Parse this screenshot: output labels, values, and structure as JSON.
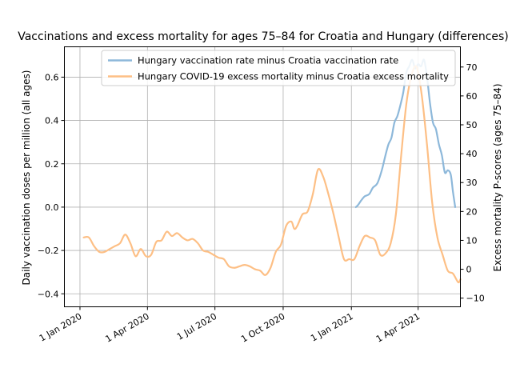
{
  "chart_data": {
    "type": "line",
    "title": "Vaccinations and excess mortality for ages 75–84 for Croatia and Hungary (differences)",
    "xlabel": "",
    "ylabel_left": "Daily vaccination doses per million (all ages)",
    "ylabel_right": "Excess mortality P-scores (ages 75–84)",
    "x_ticks": [
      "1 Jan 2020",
      "1 Apr 2020",
      "1 Jul 2020",
      "1 Oct 2020",
      "1 Jan 2021",
      "1 Apr 2021"
    ],
    "x_tick_dates": [
      "2020-01-01",
      "2020-04-01",
      "2020-07-01",
      "2020-10-01",
      "2021-01-01",
      "2021-04-01"
    ],
    "xlim": [
      "2019-12-11",
      "2021-05-28"
    ],
    "ylim_left": [
      -0.46,
      0.74
    ],
    "ylim_right": [
      -13,
      77
    ],
    "yticks_left": [
      "−0.4",
      "−0.2",
      "0.0",
      "0.2",
      "0.4",
      "0.6"
    ],
    "ytick_values_left": [
      -0.4,
      -0.2,
      0.0,
      0.2,
      0.4,
      0.6
    ],
    "yticks_right": [
      "−10",
      "0",
      "10",
      "20",
      "30",
      "40",
      "50",
      "60",
      "70"
    ],
    "ytick_values_right": [
      -10,
      0,
      10,
      20,
      30,
      40,
      50,
      60,
      70
    ],
    "grid": true,
    "legend_position": "top-right",
    "series": [
      {
        "name": "Hungary vaccination rate minus Croatia vaccination rate",
        "axis": "left",
        "color": "#8db8da",
        "points": [
          [
            "2021-01-07",
            0.0
          ],
          [
            "2021-01-10",
            0.01
          ],
          [
            "2021-01-14",
            0.03
          ],
          [
            "2021-01-19",
            0.05
          ],
          [
            "2021-01-25",
            0.06
          ],
          [
            "2021-01-30",
            0.09
          ],
          [
            "2021-02-05",
            0.11
          ],
          [
            "2021-02-11",
            0.17
          ],
          [
            "2021-02-16",
            0.24
          ],
          [
            "2021-02-20",
            0.29
          ],
          [
            "2021-02-24",
            0.32
          ],
          [
            "2021-02-28",
            0.39
          ],
          [
            "2021-03-04",
            0.42
          ],
          [
            "2021-03-08",
            0.47
          ],
          [
            "2021-03-12",
            0.53
          ],
          [
            "2021-03-16",
            0.62
          ],
          [
            "2021-03-20",
            0.65
          ],
          [
            "2021-03-24",
            0.68
          ],
          [
            "2021-03-28",
            0.64
          ],
          [
            "2021-04-01",
            0.66
          ],
          [
            "2021-04-05",
            0.65
          ],
          [
            "2021-04-09",
            0.68
          ],
          [
            "2021-04-13",
            0.6
          ],
          [
            "2021-04-17",
            0.48
          ],
          [
            "2021-04-21",
            0.39
          ],
          [
            "2021-04-25",
            0.36
          ],
          [
            "2021-04-29",
            0.29
          ],
          [
            "2021-05-03",
            0.24
          ],
          [
            "2021-05-07",
            0.16
          ],
          [
            "2021-05-11",
            0.17
          ],
          [
            "2021-05-15",
            0.15
          ],
          [
            "2021-05-18",
            0.07
          ],
          [
            "2021-05-21",
            0.0
          ]
        ]
      },
      {
        "name": "Hungary COVID-19 excess mortality minus Croatia excess mortality",
        "axis": "right",
        "color": "#fdbf85",
        "points": [
          [
            "2020-01-06",
            11
          ],
          [
            "2020-01-13",
            11
          ],
          [
            "2020-01-20",
            8
          ],
          [
            "2020-01-27",
            6
          ],
          [
            "2020-02-03",
            6
          ],
          [
            "2020-02-10",
            7
          ],
          [
            "2020-02-17",
            8
          ],
          [
            "2020-02-24",
            9
          ],
          [
            "2020-03-02",
            12
          ],
          [
            "2020-03-09",
            9
          ],
          [
            "2020-03-16",
            4.5
          ],
          [
            "2020-03-23",
            7
          ],
          [
            "2020-03-30",
            4.5
          ],
          [
            "2020-04-06",
            5
          ],
          [
            "2020-04-13",
            9.5
          ],
          [
            "2020-04-20",
            10
          ],
          [
            "2020-04-27",
            13
          ],
          [
            "2020-05-04",
            11.5
          ],
          [
            "2020-05-11",
            12.5
          ],
          [
            "2020-05-18",
            11
          ],
          [
            "2020-05-25",
            10
          ],
          [
            "2020-06-01",
            10.5
          ],
          [
            "2020-06-08",
            9
          ],
          [
            "2020-06-15",
            6.5
          ],
          [
            "2020-06-22",
            6
          ],
          [
            "2020-06-29",
            5
          ],
          [
            "2020-07-06",
            4
          ],
          [
            "2020-07-13",
            3.5
          ],
          [
            "2020-07-20",
            1
          ],
          [
            "2020-07-27",
            0.5
          ],
          [
            "2020-08-03",
            1
          ],
          [
            "2020-08-10",
            1.5
          ],
          [
            "2020-08-17",
            1
          ],
          [
            "2020-08-24",
            0
          ],
          [
            "2020-08-31",
            -0.5
          ],
          [
            "2020-09-07",
            -2
          ],
          [
            "2020-09-14",
            0.5
          ],
          [
            "2020-09-21",
            6
          ],
          [
            "2020-09-28",
            8.5
          ],
          [
            "2020-10-05",
            15
          ],
          [
            "2020-10-12",
            16.5
          ],
          [
            "2020-10-16",
            14
          ],
          [
            "2020-10-20",
            15
          ],
          [
            "2020-10-27",
            19
          ],
          [
            "2020-11-03",
            20
          ],
          [
            "2020-11-10",
            26
          ],
          [
            "2020-11-17",
            34.5
          ],
          [
            "2020-11-24",
            32
          ],
          [
            "2020-12-01",
            26
          ],
          [
            "2020-12-08",
            19
          ],
          [
            "2020-12-15",
            11
          ],
          [
            "2020-12-22",
            3.5
          ],
          [
            "2020-12-29",
            3.5
          ],
          [
            "2021-01-05",
            3.5
          ],
          [
            "2021-01-12",
            8
          ],
          [
            "2021-01-19",
            11.5
          ],
          [
            "2021-01-26",
            11
          ],
          [
            "2021-02-02",
            10
          ],
          [
            "2021-02-09",
            5
          ],
          [
            "2021-02-16",
            5.5
          ],
          [
            "2021-02-23",
            9
          ],
          [
            "2021-03-02",
            19
          ],
          [
            "2021-03-09",
            39
          ],
          [
            "2021-03-16",
            57
          ],
          [
            "2021-03-23",
            67
          ],
          [
            "2021-03-30",
            70
          ],
          [
            "2021-04-06",
            60
          ],
          [
            "2021-04-13",
            43
          ],
          [
            "2021-04-20",
            23
          ],
          [
            "2021-04-27",
            11
          ],
          [
            "2021-05-04",
            5
          ],
          [
            "2021-05-11",
            -0.5
          ],
          [
            "2021-05-18",
            -1.5
          ],
          [
            "2021-05-25",
            -4.5
          ],
          [
            "2021-05-28",
            -3.5
          ]
        ]
      }
    ]
  }
}
